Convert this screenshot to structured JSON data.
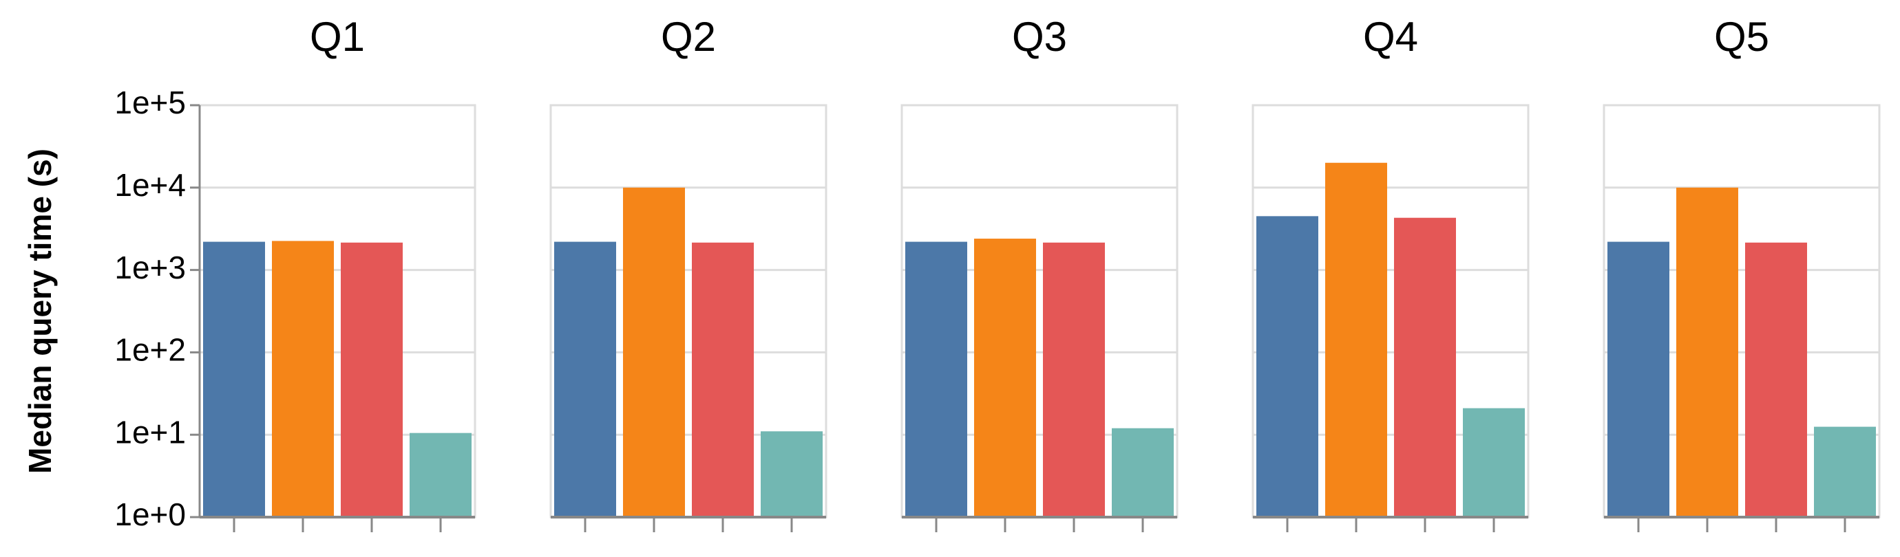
{
  "chart_data": [
    {
      "type": "bar",
      "title": "Q1",
      "y_label": "Median query time (s)",
      "categories": [
        null,
        null,
        null,
        null
      ],
      "values": [
        2200,
        2250,
        2150,
        10.5
      ],
      "colors": [
        "#4c78a8",
        "#f58518",
        "#e45756",
        "#72b7b2"
      ],
      "log_scale": true,
      "grid": true,
      "ylim": [
        1,
        100000
      ],
      "yticks": [
        {
          "value": 1,
          "label": "1e+0"
        },
        {
          "value": 10,
          "label": "1e+1"
        },
        {
          "value": 100,
          "label": "1e+2"
        },
        {
          "value": 1000,
          "label": "1e+3"
        },
        {
          "value": 10000,
          "label": "1e+4"
        },
        {
          "value": 100000,
          "label": "1e+5"
        }
      ]
    },
    {
      "type": "bar",
      "title": "Q2",
      "categories": [
        null,
        null,
        null,
        null
      ],
      "values": [
        2200,
        10000,
        2150,
        11
      ],
      "colors": [
        "#4c78a8",
        "#f58518",
        "#e45756",
        "#72b7b2"
      ],
      "log_scale": true,
      "grid": true,
      "ylim": [
        1,
        100000
      ],
      "yticks": [
        1,
        10,
        100,
        1000,
        10000,
        100000
      ]
    },
    {
      "type": "bar",
      "title": "Q3",
      "categories": [
        null,
        null,
        null,
        null
      ],
      "values": [
        2200,
        2400,
        2150,
        12
      ],
      "colors": [
        "#4c78a8",
        "#f58518",
        "#e45756",
        "#72b7b2"
      ],
      "log_scale": true,
      "grid": true,
      "ylim": [
        1,
        100000
      ],
      "yticks": [
        1,
        10,
        100,
        1000,
        10000,
        100000
      ]
    },
    {
      "type": "bar",
      "title": "Q4",
      "categories": [
        null,
        null,
        null,
        null
      ],
      "values": [
        4500,
        20000,
        4300,
        21
      ],
      "colors": [
        "#4c78a8",
        "#f58518",
        "#e45756",
        "#72b7b2"
      ],
      "log_scale": true,
      "grid": true,
      "ylim": [
        1,
        100000
      ],
      "yticks": [
        1,
        10,
        100,
        1000,
        10000,
        100000
      ]
    },
    {
      "type": "bar",
      "title": "Q5",
      "categories": [
        null,
        null,
        null,
        null
      ],
      "values": [
        2200,
        10000,
        2150,
        12.5
      ],
      "colors": [
        "#4c78a8",
        "#f58518",
        "#e45756",
        "#72b7b2"
      ],
      "log_scale": true,
      "grid": true,
      "ylim": [
        1,
        100000
      ],
      "yticks": [
        1,
        10,
        100,
        1000,
        10000,
        100000
      ]
    }
  ]
}
